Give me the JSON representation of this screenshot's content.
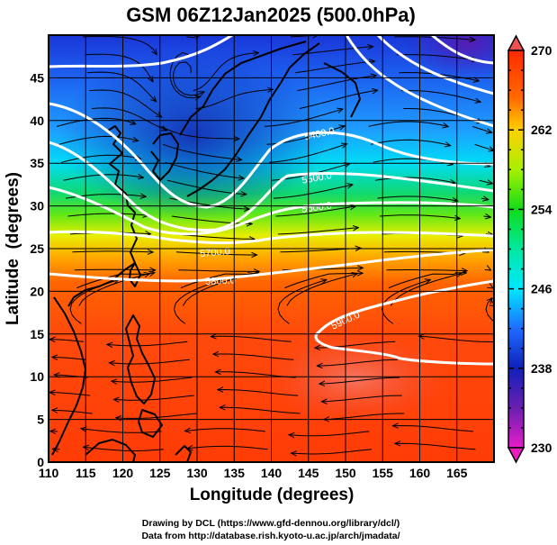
{
  "chart_data": {
    "type": "heatmap",
    "title": "GSM 06Z12Jan2025 (500.0hPa)",
    "xlabel": "Longitude (degrees)",
    "ylabel": "Latitude  (degrees)",
    "xlim": [
      110,
      170
    ],
    "ylim": [
      0,
      50
    ],
    "x_ticks": [
      110,
      115,
      120,
      125,
      130,
      135,
      140,
      145,
      150,
      155,
      160,
      165
    ],
    "y_ticks": [
      0,
      5,
      10,
      15,
      20,
      25,
      30,
      35,
      40,
      45
    ],
    "grid": true,
    "colorbar": {
      "min": 230,
      "max": 270,
      "tick_labels": [
        "270",
        "262",
        "254",
        "246",
        "238",
        "230"
      ],
      "tick_values": [
        270,
        262,
        254,
        246,
        238,
        230
      ],
      "extend": "both",
      "colors": [
        "#e61ec8",
        "#7a1fb0",
        "#1020b8",
        "#0a3cf0",
        "#1e8cff",
        "#00e8ff",
        "#00e09a",
        "#10dc18",
        "#9cf00a",
        "#f4f000",
        "#ffb400",
        "#ff6a00",
        "#ff2a00",
        "#f54a4a"
      ]
    },
    "field_note_colors": {
      "cold_core": "#1a2ec8",
      "warm_core": "#f2695a"
    },
    "contours": {
      "color": "#ffffff",
      "levels": [
        5300,
        5400,
        5500,
        5600,
        5700,
        5800,
        5900
      ],
      "labels": [
        "5400.0",
        "5500.0",
        "5600.0",
        "5700.0",
        "5800.0",
        "5900.0"
      ]
    },
    "streamlines": true,
    "coastlines": true
  },
  "credits": {
    "line1": "Drawing by DCL (https://www.gfd-dennou.org/library/dcl/)",
    "line2": "Data from http://database.rish.kyoto-u.ac.jp/arch/jmadata/"
  }
}
